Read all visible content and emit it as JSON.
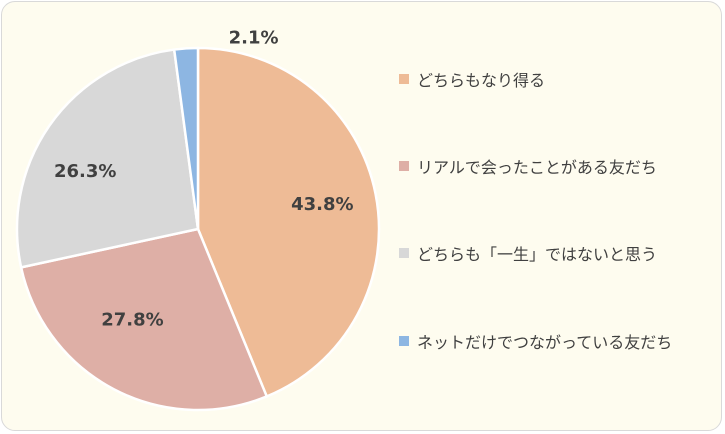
{
  "chart_data": {
    "type": "pie",
    "slices": [
      {
        "label": "どちらもなり得る",
        "value": 43.8,
        "display": "43.8%",
        "color": "#eebb96"
      },
      {
        "label": "リアルで会ったことがある友だち",
        "value": 27.8,
        "display": "27.8%",
        "color": "#deafa6"
      },
      {
        "label": "どちらも「一生」ではないと思う",
        "value": 26.3,
        "display": "26.3%",
        "color": "#d8d8d8"
      },
      {
        "label": "ネットだけでつながっている友だち",
        "value": 2.1,
        "display": "2.1%",
        "color": "#8db6e2"
      }
    ],
    "start": "12 o'clock",
    "direction": "clockwise",
    "legend_position": "right"
  }
}
